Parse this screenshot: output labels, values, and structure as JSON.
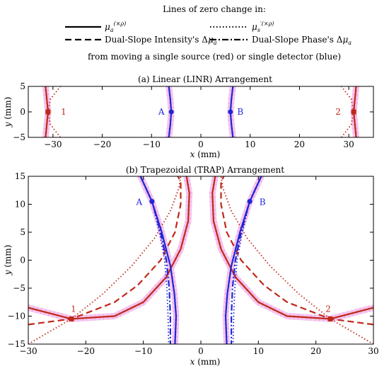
{
  "chart_data": {
    "type": "line",
    "colors": {
      "source": "#c0281a",
      "detector": "#1f26d6",
      "halo": "#f4c8f0",
      "dots": "#f39bd6"
    },
    "legend": {
      "heading": "Lines of zero change in:",
      "entries": [
        {
          "key": "mua",
          "style": "solid",
          "label": "μa(×ρ)"
        },
        {
          "key": "musp",
          "style": "dotted",
          "label": "μs′(×ρ)"
        },
        {
          "key": "dsi",
          "style": "dashed",
          "label": "Dual-Slope Intensity's Δμa"
        },
        {
          "key": "dsp",
          "style": "dashdot",
          "label": "Dual-Slope Phase's Δμa"
        }
      ],
      "footer": "from moving a single source (red) or single detector (blue)"
    },
    "panels": [
      {
        "id": "linr",
        "title": "(a) Linear (LINR) Arrangement",
        "xlabel": "x (mm)",
        "ylabel": "y (mm)",
        "xlim": [
          -35,
          35
        ],
        "ylim": [
          -5,
          5
        ],
        "xticks": [
          -30,
          -20,
          -10,
          0,
          10,
          20,
          30
        ],
        "yticks": [
          -5,
          0,
          5
        ],
        "optodes": [
          {
            "label": "1",
            "kind": "source",
            "x": -31,
            "y": 0
          },
          {
            "label": "A",
            "kind": "detector",
            "x": -6,
            "y": 0
          },
          {
            "label": "B",
            "kind": "detector",
            "x": 6,
            "y": 0
          },
          {
            "label": "2",
            "kind": "source",
            "x": 31,
            "y": 0
          }
        ],
        "curves": [
          {
            "kind": "source",
            "style": "solid",
            "points": [
              [
                -31.5,
                -5
              ],
              [
                -31,
                0
              ],
              [
                -31.5,
                5
              ]
            ]
          },
          {
            "kind": "source",
            "style": "dotted",
            "points": [
              [
                -28.5,
                -5
              ],
              [
                -30.5,
                -2.5
              ],
              [
                -31,
                0
              ],
              [
                -30.5,
                2.5
              ],
              [
                -28.5,
                5
              ]
            ]
          },
          {
            "kind": "source",
            "style": "solid",
            "points": [
              [
                31.5,
                -5
              ],
              [
                31,
                0
              ],
              [
                31.5,
                5
              ]
            ]
          },
          {
            "kind": "source",
            "style": "dotted",
            "points": [
              [
                28.5,
                -5
              ],
              [
                30.5,
                -2.5
              ],
              [
                31,
                0
              ],
              [
                30.5,
                2.5
              ],
              [
                28.5,
                5
              ]
            ]
          },
          {
            "kind": "detector",
            "style": "solid",
            "points": [
              [
                -6.5,
                -5
              ],
              [
                -6.2,
                -2.5
              ],
              [
                -6,
                0
              ],
              [
                -6.2,
                2.5
              ],
              [
                -6.5,
                5
              ]
            ]
          },
          {
            "kind": "detector",
            "style": "solid",
            "points": [
              [
                6.5,
                -5
              ],
              [
                6.2,
                -2.5
              ],
              [
                6,
                0
              ],
              [
                6.2,
                2.5
              ],
              [
                6.5,
                5
              ]
            ]
          }
        ]
      },
      {
        "id": "trap",
        "title": "(b) Trapezoidal (TRAP) Arrangement",
        "xlabel": "x (mm)",
        "ylabel": "y (mm)",
        "xlim": [
          -30,
          30
        ],
        "ylim": [
          -15,
          15
        ],
        "xticks": [
          -30,
          -20,
          -10,
          0,
          10,
          20,
          30
        ],
        "yticks": [
          -15,
          -10,
          -5,
          0,
          5,
          10,
          15
        ],
        "optodes": [
          {
            "label": "1",
            "kind": "source",
            "x": -22.5,
            "y": -10.5
          },
          {
            "label": "A",
            "kind": "detector",
            "x": -8.5,
            "y": 10.5
          },
          {
            "label": "B",
            "kind": "detector",
            "x": 8.5,
            "y": 10.5
          },
          {
            "label": "2",
            "kind": "source",
            "x": 22.5,
            "y": -10.5
          }
        ],
        "curves": [
          {
            "kind": "source",
            "style": "solid",
            "points": [
              [
                -30,
                -8.5
              ],
              [
                -22.5,
                -10.5
              ],
              [
                -15,
                -10
              ],
              [
                -10,
                -7.5
              ],
              [
                -6,
                -3
              ],
              [
                -3.5,
                2
              ],
              [
                -2.2,
                7
              ],
              [
                -2,
                12
              ],
              [
                -2.5,
                15
              ]
            ]
          },
          {
            "kind": "source",
            "style": "dashed",
            "points": [
              [
                -30,
                -11.5
              ],
              [
                -22.5,
                -10.5
              ],
              [
                -15,
                -7.5
              ],
              [
                -11,
                -4.5
              ],
              [
                -7,
                0
              ],
              [
                -4.5,
                5
              ],
              [
                -3.5,
                10
              ],
              [
                -3.5,
                14
              ],
              [
                -4,
                15
              ]
            ]
          },
          {
            "kind": "source",
            "style": "dotted",
            "points": [
              [
                -30,
                -15
              ],
              [
                -22.5,
                -10.5
              ],
              [
                -17,
                -6
              ],
              [
                -12,
                -1
              ],
              [
                -8,
                4
              ],
              [
                -5.2,
                9
              ],
              [
                -3.8,
                13
              ],
              [
                -3.5,
                15
              ]
            ]
          },
          {
            "kind": "source",
            "style": "solid",
            "points": [
              [
                30,
                -8.5
              ],
              [
                22.5,
                -10.5
              ],
              [
                15,
                -10
              ],
              [
                10,
                -7.5
              ],
              [
                6,
                -3
              ],
              [
                3.5,
                2
              ],
              [
                2.2,
                7
              ],
              [
                2,
                12
              ],
              [
                2.5,
                15
              ]
            ]
          },
          {
            "kind": "source",
            "style": "dashed",
            "points": [
              [
                30,
                -11.5
              ],
              [
                22.5,
                -10.5
              ],
              [
                15,
                -7.5
              ],
              [
                11,
                -4.5
              ],
              [
                7,
                0
              ],
              [
                4.5,
                5
              ],
              [
                3.5,
                10
              ],
              [
                3.5,
                14
              ],
              [
                4,
                15
              ]
            ]
          },
          {
            "kind": "source",
            "style": "dotted",
            "points": [
              [
                30,
                -15
              ],
              [
                22.5,
                -10.5
              ],
              [
                17,
                -6
              ],
              [
                12,
                -1
              ],
              [
                8,
                4
              ],
              [
                5.2,
                9
              ],
              [
                3.8,
                13
              ],
              [
                3.5,
                15
              ]
            ]
          },
          {
            "kind": "detector",
            "style": "solid",
            "points": [
              [
                -10.5,
                15
              ],
              [
                -8.5,
                10.5
              ],
              [
                -6.8,
                5
              ],
              [
                -5.3,
                -1
              ],
              [
                -4.6,
                -6
              ],
              [
                -4.3,
                -10
              ],
              [
                -4.5,
                -15
              ]
            ]
          },
          {
            "kind": "detector",
            "style": "dotted",
            "points": [
              [
                -10.5,
                15
              ],
              [
                -8.5,
                10.5
              ],
              [
                -7.2,
                5
              ],
              [
                -6.3,
                0
              ],
              [
                -5.9,
                -5
              ],
              [
                -5.7,
                -10
              ],
              [
                -5.6,
                -15
              ]
            ]
          },
          {
            "kind": "detector",
            "style": "dashdot",
            "points": [
              [
                -10.5,
                15
              ],
              [
                -8.5,
                10.5
              ],
              [
                -7,
                5
              ],
              [
                -6,
                0
              ],
              [
                -5.5,
                -5
              ],
              [
                -5.3,
                -10
              ],
              [
                -5.3,
                -15
              ]
            ]
          },
          {
            "kind": "detector",
            "style": "solid",
            "points": [
              [
                10.5,
                15
              ],
              [
                8.5,
                10.5
              ],
              [
                6.8,
                5
              ],
              [
                5.3,
                -1
              ],
              [
                4.6,
                -6
              ],
              [
                4.3,
                -10
              ],
              [
                4.5,
                -15
              ]
            ]
          },
          {
            "kind": "detector",
            "style": "dotted",
            "points": [
              [
                10.5,
                15
              ],
              [
                8.5,
                10.5
              ],
              [
                7.2,
                5
              ],
              [
                6.3,
                0
              ],
              [
                5.9,
                -5
              ],
              [
                5.7,
                -10
              ],
              [
                5.6,
                -15
              ]
            ]
          },
          {
            "kind": "detector",
            "style": "dashdot",
            "points": [
              [
                10.5,
                15
              ],
              [
                8.5,
                10.5
              ],
              [
                7,
                5
              ],
              [
                6,
                0
              ],
              [
                5.5,
                -5
              ],
              [
                5.3,
                -10
              ],
              [
                5.3,
                -15
              ]
            ]
          }
        ]
      }
    ]
  }
}
